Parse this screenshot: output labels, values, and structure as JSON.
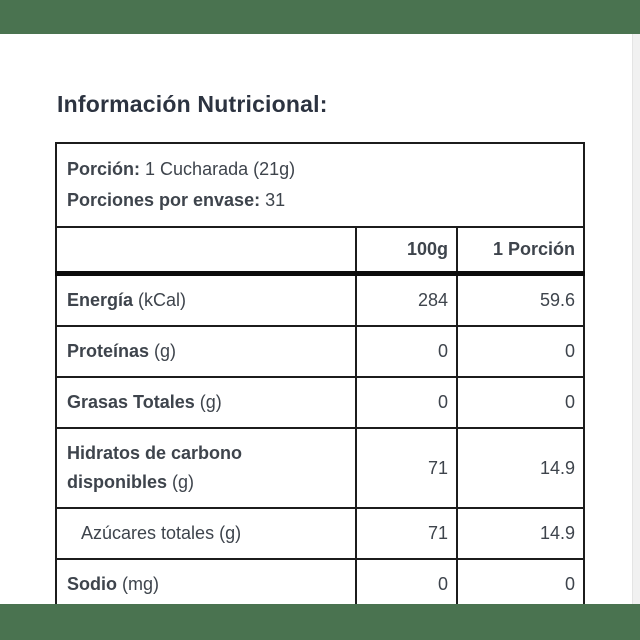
{
  "theme": {
    "accent_green": "#4a7350",
    "text_color": "#3e444c",
    "title_color": "#2c3340",
    "table_border_color": "#1c1c1c"
  },
  "header": {
    "title": "Información Nutricional:"
  },
  "nutrition_table": {
    "serving": {
      "serving_size_label": "Porción:",
      "serving_size_value": "1 Cucharada (21g)",
      "servings_per_container_label": "Porciones por envase:",
      "servings_per_container_value": "31"
    },
    "columns": {
      "per_100g": "100g",
      "per_portion": "1 Porción"
    },
    "rows": [
      {
        "label": "Energía",
        "unit": "(kCal)",
        "per_100g": "284",
        "per_portion": "59.6"
      },
      {
        "label": "Proteínas",
        "unit": "(g)",
        "per_100g": "0",
        "per_portion": "0"
      },
      {
        "label": "Grasas Totales",
        "unit": "(g)",
        "per_100g": "0",
        "per_portion": "0"
      },
      {
        "label": "Hidratos de carbono disponibles",
        "unit": "(g)",
        "per_100g": "71",
        "per_portion": "14.9"
      },
      {
        "label": "Azúcares totales",
        "unit": "(g)",
        "per_100g": "71",
        "per_portion": "14.9"
      },
      {
        "label": "Sodio",
        "unit": "(mg)",
        "per_100g": "0",
        "per_portion": "0"
      }
    ]
  }
}
